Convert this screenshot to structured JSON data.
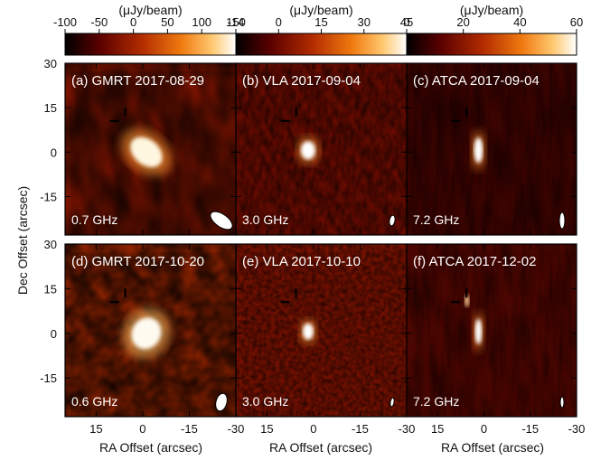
{
  "colorbars": [
    {
      "unit": "(μJy/beam)",
      "ticks": [
        "-100",
        "-50",
        "0",
        "50",
        "100",
        "150"
      ]
    },
    {
      "unit": "(μJy/beam)",
      "ticks": [
        "-14",
        "0",
        "15",
        "30",
        "45"
      ]
    },
    {
      "unit": "(μJy/beam)",
      "ticks": [
        "0",
        "20",
        "40",
        "60"
      ]
    }
  ],
  "panels": [
    {
      "label": "(a) GMRT 2017-08-29",
      "freq": "0.7 GHz"
    },
    {
      "label": "(b) VLA 2017-09-04",
      "freq": "3.0 GHz"
    },
    {
      "label": "(c) ATCA 2017-09-04",
      "freq": "7.2 GHz"
    },
    {
      "label": "(d) GMRT 2017-10-20",
      "freq": "0.6 GHz"
    },
    {
      "label": "(e) VLA 2017-10-10",
      "freq": "3.0 GHz"
    },
    {
      "label": "(f) ATCA 2017-12-02",
      "freq": "7.2 GHz"
    }
  ],
  "axes": {
    "ylabel": "Dec Offset (arcsec)",
    "xlabel": "RA Offset (arcsec)",
    "yticks": [
      "30",
      "15",
      "0",
      "-15"
    ],
    "xticks_left": [
      "15",
      "0",
      "-15",
      "-30"
    ],
    "xticks_other": [
      "15",
      "0",
      "-15",
      "-30"
    ]
  },
  "colormap": [
    "#000000",
    "#5a0000",
    "#b22c00",
    "#f07a10",
    "#ffc870",
    "#ffffff"
  ]
}
